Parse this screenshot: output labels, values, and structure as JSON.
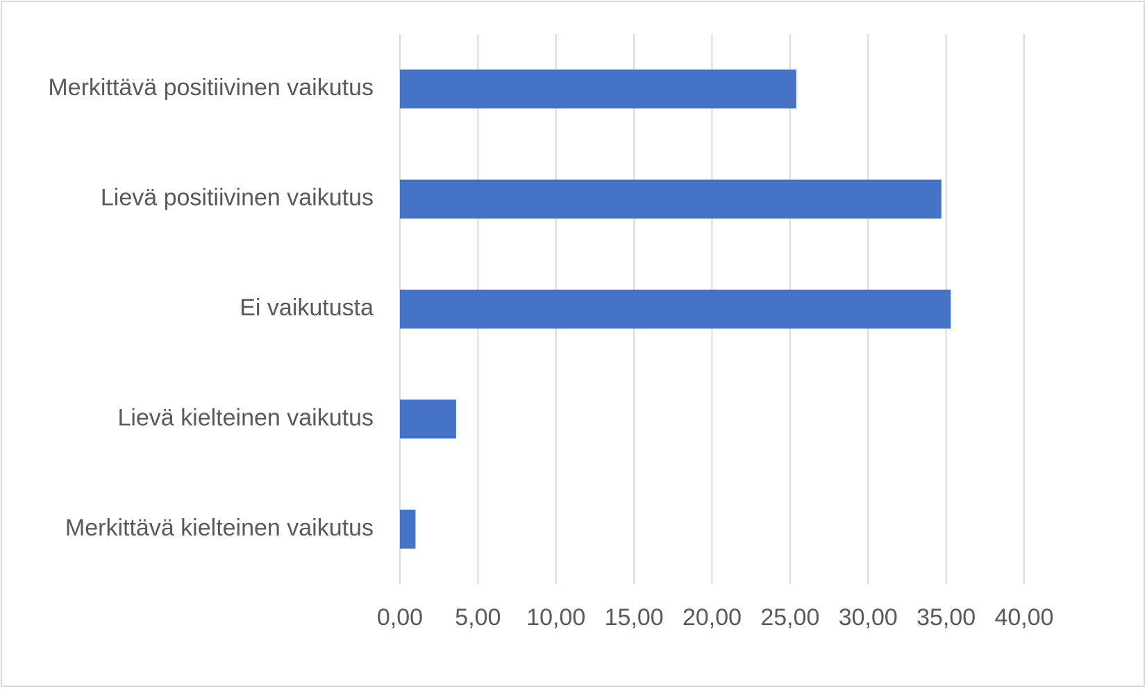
{
  "chart_data": {
    "type": "bar",
    "orientation": "horizontal",
    "title": "",
    "xlabel": "",
    "ylabel": "",
    "categories": [
      "Merkittävä positiivinen vaikutus",
      "Lievä positiivinen vaikutus",
      "Ei vaikutusta",
      "Lievä kielteinen vaikutus",
      "Merkittävä kielteinen vaikutus"
    ],
    "values": [
      25.4,
      34.7,
      35.3,
      3.6,
      1.0
    ],
    "xlim": [
      0,
      40
    ],
    "ticks": [
      "0,00",
      "5,00",
      "10,00",
      "15,00",
      "20,00",
      "25,00",
      "30,00",
      "35,00",
      "40,00"
    ],
    "grid": "vertical",
    "legend": "none",
    "colors": {
      "bar": "#4472c4",
      "grid": "#d9d9d9",
      "text": "#595959",
      "frame": "#d9d9d9"
    }
  }
}
